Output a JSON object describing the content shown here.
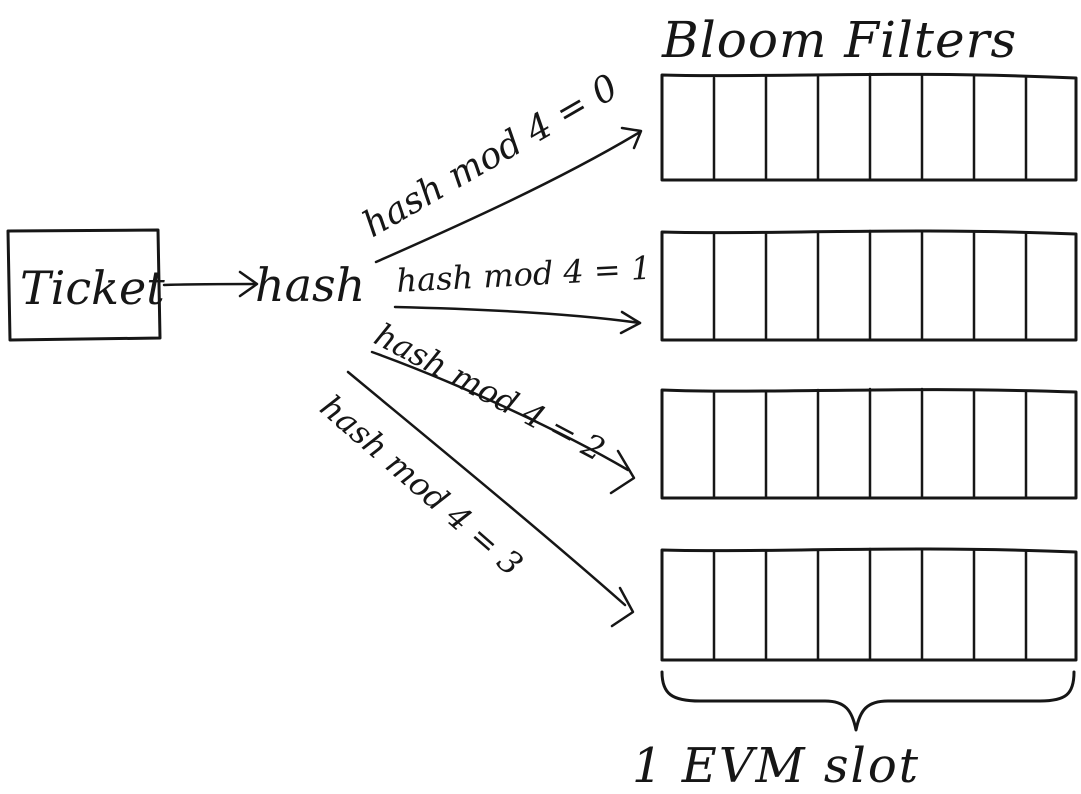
{
  "title": "Bloom Filters",
  "input": {
    "label": "Ticket"
  },
  "hash": {
    "label": "hash"
  },
  "routes": [
    {
      "label": "hash mod 4 = 0"
    },
    {
      "label": "hash mod 4 = 1"
    },
    {
      "label": "hash mod 4 = 2"
    },
    {
      "label": "hash mod 4 = 3"
    }
  ],
  "filters": {
    "count": 4,
    "cells_per_filter": 8
  },
  "brace_label": "1 EVM slot"
}
